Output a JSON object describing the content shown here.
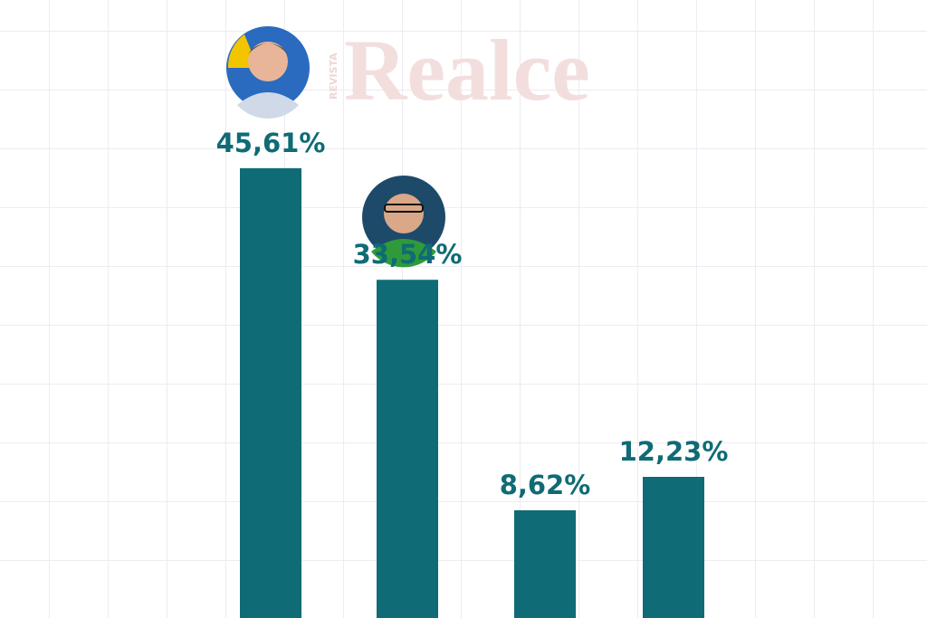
{
  "chart_data": {
    "type": "bar",
    "watermark": "Realce",
    "watermark_small": "REVISTA",
    "categories": [
      null,
      null,
      null,
      null
    ],
    "values": [
      45.61,
      33.54,
      8.62,
      12.23
    ],
    "value_labels": [
      "45,61%",
      "33,54%",
      "8,62%",
      "12,23%"
    ],
    "color": "#0f6b76",
    "grid": false
  }
}
